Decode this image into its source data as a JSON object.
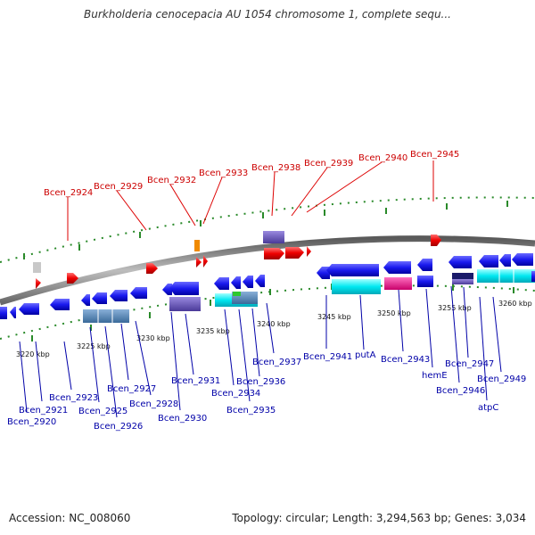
{
  "title": "Burkholderia cenocepacia AU 1054 chromosome 1, complete sequ...",
  "footer": {
    "accession": "Accession: NC_008060",
    "summary": "Topology: circular; Length: 3,294,563 bp; Genes: 3,034"
  },
  "colors": {
    "forward_gene": "#ee0000",
    "reverse_gene": "#1a1aee",
    "backbone": "#8a8a8a",
    "tick": "#2a8a2a",
    "label_top": "#cc0000",
    "label_bottom": "#0000a8"
  },
  "scale_ticks": [
    "3220 kbp",
    "3225 kbp",
    "3230 kbp",
    "3235 kbp",
    "3240 kbp",
    "3245 kbp",
    "3250 kbp",
    "3255 kbp",
    "3260 kbp"
  ],
  "top_labels": [
    "Bcen_2924",
    "Bcen_2929",
    "Bcen_2932",
    "Bcen_2933",
    "Bcen_2938",
    "Bcen_2939",
    "Bcen_2940",
    "Bcen_2945"
  ],
  "bottom_labels": [
    "Bcen_2920",
    "Bcen_2921",
    "Bcen_2923",
    "Bcen_2925",
    "Bcen_2926",
    "Bcen_2927",
    "Bcen_2928",
    "Bcen_2930",
    "Bcen_2931",
    "Bcen_2934",
    "Bcen_2935",
    "Bcen_2936",
    "Bcen_2937",
    "Bcen_2941",
    "putA",
    "Bcen_2943",
    "hemE",
    "Bcen_2946",
    "Bcen_2947",
    "atpC",
    "Bcen_2949"
  ]
}
